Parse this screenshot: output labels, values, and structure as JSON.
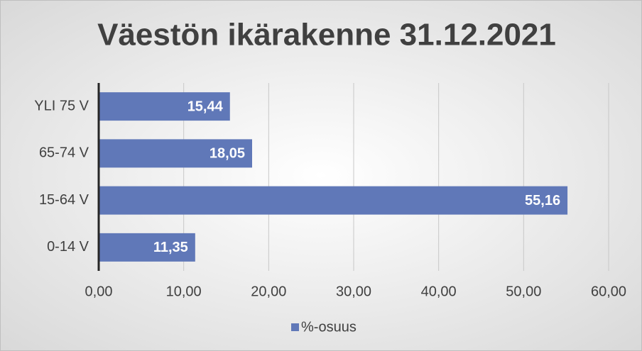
{
  "chart_data": {
    "type": "barh",
    "title": "Väestön ikärakenne 31.12.2021",
    "categories": [
      "YLI 75 V",
      "65-74 V",
      "15-64 V",
      "0-14 V"
    ],
    "series": [
      {
        "name": "%-osuus",
        "color": "#6078b8",
        "values": [
          15.44,
          18.05,
          55.16,
          11.35
        ],
        "value_labels": [
          "15,44",
          "18,05",
          "55,16",
          "11,35"
        ]
      }
    ],
    "xlim": [
      0,
      60
    ],
    "xticks": [
      {
        "value": 0,
        "label": "0,00"
      },
      {
        "value": 10,
        "label": "10,00"
      },
      {
        "value": 20,
        "label": "20,00"
      },
      {
        "value": 30,
        "label": "30,00"
      },
      {
        "value": 40,
        "label": "40,00"
      },
      {
        "value": 50,
        "label": "50,00"
      },
      {
        "value": 60,
        "label": "60,00"
      }
    ],
    "grid": true,
    "legend": "bottom"
  }
}
